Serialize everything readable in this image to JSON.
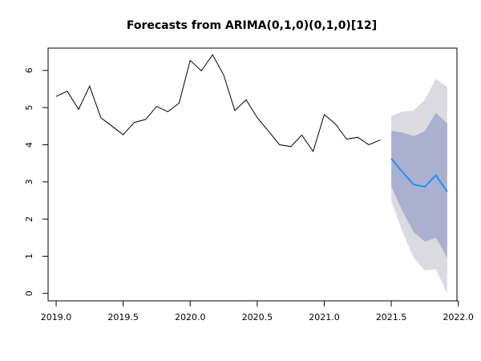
{
  "chart_data": {
    "type": "line",
    "title": "Forecasts from ARIMA(0,1,0)(0,1,0)[12]",
    "xlabel": "",
    "ylabel": "",
    "xlim": [
      2018.94,
      2021.99
    ],
    "ylim": [
      -0.2,
      6.6
    ],
    "x_ticks": [
      2019.0,
      2019.5,
      2020.0,
      2020.5,
      2021.0,
      2021.5,
      2022.0
    ],
    "x_tick_labels": [
      "2019.0",
      "2019.5",
      "2020.0",
      "2020.5",
      "2021.0",
      "2021.5",
      "2022.0"
    ],
    "y_ticks": [
      0,
      1,
      2,
      3,
      4,
      5,
      6
    ],
    "y_tick_labels": [
      "0",
      "1",
      "2",
      "3",
      "4",
      "5",
      "6"
    ],
    "grid": false,
    "legend": "none",
    "colors": {
      "observed": "#000000",
      "forecast": "#1e90ff",
      "band80": "#aab0ce",
      "band95": "#dadae0"
    },
    "series": [
      {
        "role": "observed",
        "x": [
          2019.0,
          2019.083,
          2019.167,
          2019.25,
          2019.333,
          2019.417,
          2019.5,
          2019.583,
          2019.667,
          2019.75,
          2019.833,
          2019.917,
          2020.0,
          2020.083,
          2020.167,
          2020.25,
          2020.333,
          2020.417,
          2020.5,
          2020.583,
          2020.667,
          2020.75,
          2020.833,
          2020.917,
          2021.0,
          2021.083,
          2021.167,
          2021.25,
          2021.333,
          2021.417
        ],
        "y": [
          5.3,
          5.44,
          4.95,
          5.58,
          4.73,
          4.5,
          4.27,
          4.6,
          4.68,
          5.03,
          4.89,
          5.12,
          6.27,
          5.99,
          6.42,
          5.88,
          4.92,
          5.21,
          4.73,
          4.37,
          4.0,
          3.95,
          4.26,
          3.82,
          4.81,
          4.56,
          4.15,
          4.2,
          4.0,
          4.13
        ]
      },
      {
        "role": "forecast",
        "x": [
          2021.5,
          2021.583,
          2021.667,
          2021.75,
          2021.833,
          2021.917
        ],
        "y": [
          3.63,
          3.27,
          2.93,
          2.87,
          3.18,
          2.74
        ],
        "lo80": [
          2.88,
          2.22,
          1.65,
          1.39,
          1.5,
          0.96
        ],
        "hi80": [
          4.37,
          4.33,
          4.23,
          4.36,
          4.86,
          4.58
        ],
        "lo95": [
          2.49,
          1.66,
          0.96,
          0.62,
          0.65,
          0.0
        ],
        "hi95": [
          4.77,
          4.89,
          4.92,
          5.21,
          5.77,
          5.56
        ]
      }
    ]
  }
}
